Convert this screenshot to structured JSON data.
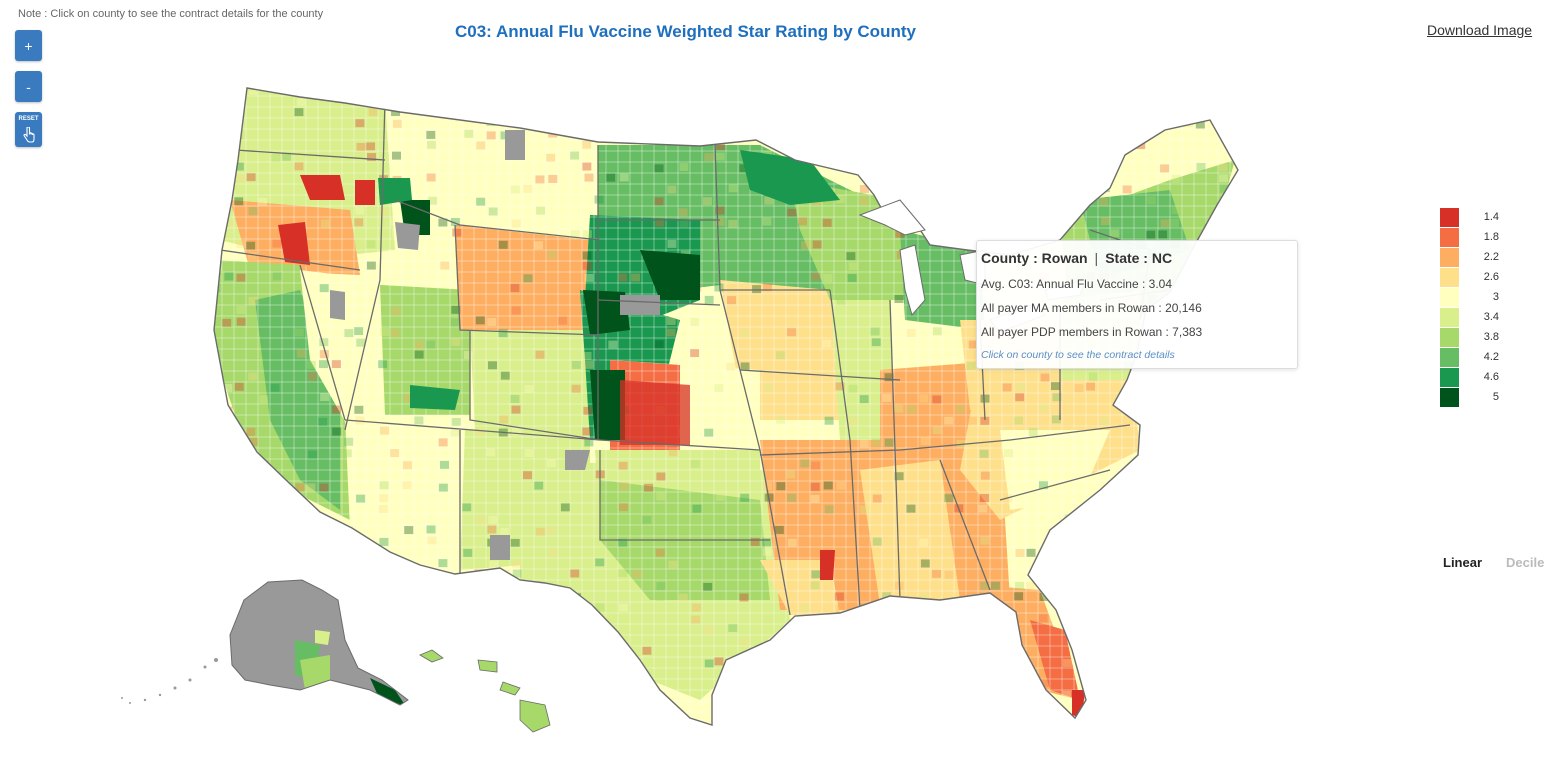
{
  "note": "Note : Click on county to see the contract details for the county",
  "title": "C03: Annual Flu Vaccine Weighted Star Rating by County",
  "download_label": "Download Image",
  "controls": {
    "zoom_in": "+",
    "zoom_out": "-",
    "reset": "RESET"
  },
  "legend": [
    {
      "label": "1.4",
      "color": "#d73027"
    },
    {
      "label": "1.8",
      "color": "#f46d43"
    },
    {
      "label": "2.2",
      "color": "#fdae61"
    },
    {
      "label": "2.6",
      "color": "#fee08b"
    },
    {
      "label": "3",
      "color": "#ffffbf"
    },
    {
      "label": "3.4",
      "color": "#d9ef8b"
    },
    {
      "label": "3.8",
      "color": "#a6d96a"
    },
    {
      "label": "4.2",
      "color": "#66bd63"
    },
    {
      "label": "4.6",
      "color": "#1a9850"
    },
    {
      "label": "5",
      "color": "#00531b"
    }
  ],
  "no_data_color": "#999999",
  "scale": {
    "linear": "Linear",
    "decile": "Decile",
    "selected": "Linear"
  },
  "tooltip": {
    "county_label": "County : Rowan",
    "state_label": "State : NC",
    "separator": "|",
    "avg": "Avg. C03: Annual Flu Vaccine : 3.04",
    "ma_members": "All payer MA members in Rowan : 20,146",
    "pdp_members": "All payer PDP members in Rowan : 7,383",
    "hint": "Click on county to see the contract details"
  }
}
